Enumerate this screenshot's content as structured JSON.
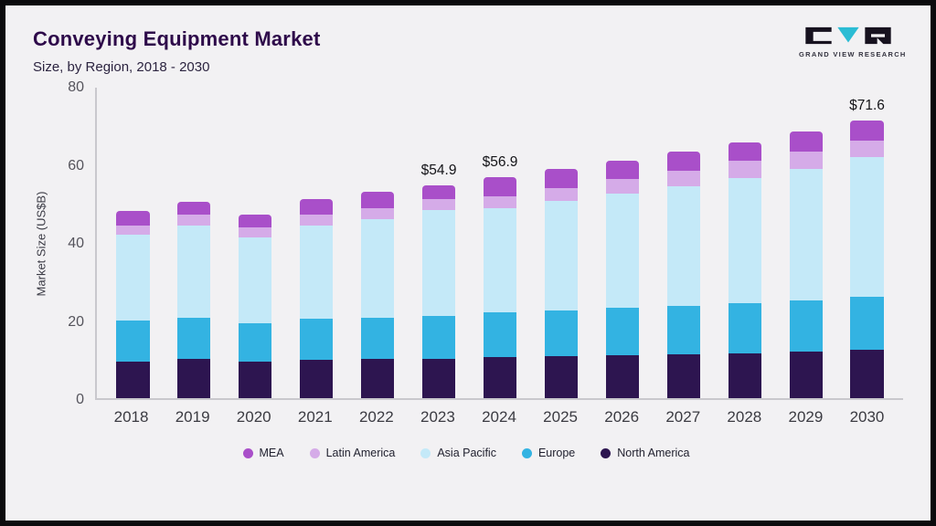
{
  "header": {
    "title": "Conveying Equipment Market",
    "subtitle": "Size, by Region, 2018 - 2030",
    "logo_text": "GRAND VIEW RESEARCH"
  },
  "chart_data": {
    "type": "bar",
    "stacked": true,
    "title": "Conveying Equipment Market Size, by Region, 2018 - 2030",
    "xlabel": "",
    "ylabel": "Market Size (US$B)",
    "ylim": [
      0,
      80
    ],
    "yticks": [
      0,
      20,
      40,
      60,
      80
    ],
    "grid": false,
    "legend_position": "bottom",
    "categories": [
      "2018",
      "2019",
      "2020",
      "2021",
      "2022",
      "2023",
      "2024",
      "2025",
      "2026",
      "2027",
      "2028",
      "2029",
      "2030"
    ],
    "series": [
      {
        "name": "North America",
        "color": "#2d1550",
        "values": [
          9.5,
          10.0,
          9.3,
          9.8,
          10.0,
          10.2,
          10.5,
          10.8,
          11.0,
          11.3,
          11.5,
          12.0,
          12.5
        ]
      },
      {
        "name": "Europe",
        "color": "#33b3e2",
        "values": [
          10.5,
          10.7,
          10.0,
          10.7,
          10.8,
          11.0,
          11.5,
          11.8,
          12.2,
          12.5,
          12.9,
          13.1,
          13.5
        ]
      },
      {
        "name": "Asia Pacific",
        "color": "#c4e9f8",
        "values": [
          22.0,
          23.8,
          22.2,
          24.0,
          25.4,
          27.3,
          26.9,
          28.2,
          29.6,
          30.8,
          32.4,
          34.0,
          36.0
        ]
      },
      {
        "name": "Latin America",
        "color": "#d5abe8",
        "values": [
          2.5,
          2.7,
          2.5,
          2.7,
          2.8,
          2.9,
          3.2,
          3.4,
          3.6,
          4.0,
          4.3,
          4.5,
          4.4
        ]
      },
      {
        "name": "MEA",
        "color": "#a94fc9",
        "values": [
          3.8,
          3.5,
          3.4,
          4.0,
          4.2,
          3.5,
          4.8,
          4.8,
          4.8,
          4.9,
          4.9,
          5.0,
          5.2
        ]
      }
    ],
    "totals": [
      48.3,
      50.7,
      47.4,
      51.2,
      53.2,
      54.9,
      56.9,
      59.0,
      61.2,
      63.5,
      66.0,
      68.6,
      71.6
    ],
    "annotations": [
      {
        "category": "2023",
        "label": "$54.9"
      },
      {
        "category": "2024",
        "label": "$56.9"
      },
      {
        "category": "2030",
        "label": "$71.6"
      }
    ],
    "legend": [
      "MEA",
      "Latin America",
      "Asia Pacific",
      "Europe",
      "North America"
    ],
    "legend_colors": {
      "MEA": "#a94fc9",
      "Latin America": "#d5abe8",
      "Asia Pacific": "#c4e9f8",
      "Europe": "#33b3e2",
      "North America": "#2d1550"
    }
  }
}
